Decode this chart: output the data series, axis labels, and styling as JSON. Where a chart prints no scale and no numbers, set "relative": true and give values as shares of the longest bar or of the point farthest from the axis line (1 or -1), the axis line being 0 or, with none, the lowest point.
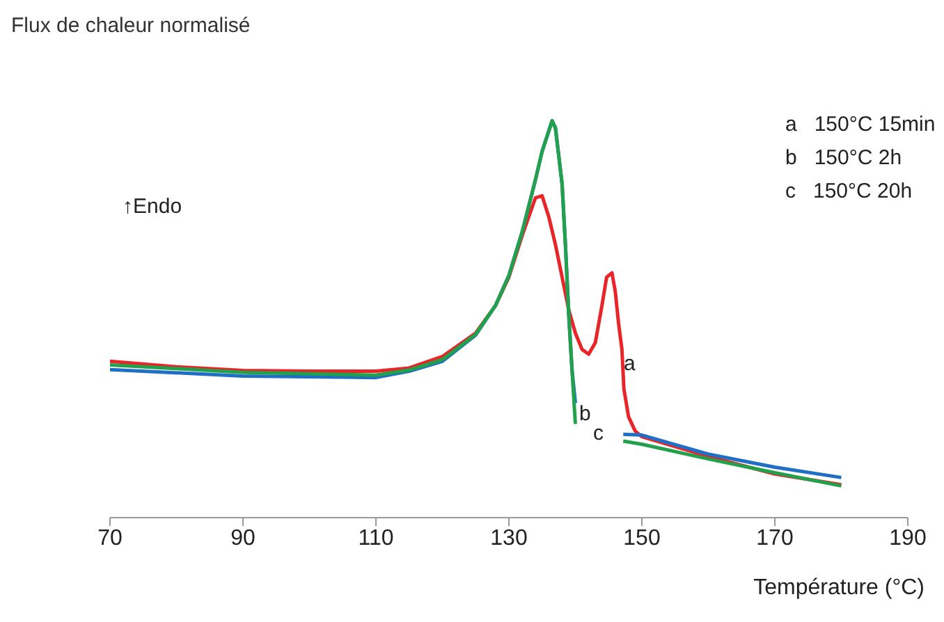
{
  "chart_data": {
    "type": "line",
    "ylabel": "Flux de chaleur normalisé",
    "xlabel": "Température (°C)",
    "relative": true,
    "xlim": [
      70,
      190
    ],
    "xticks": [
      70,
      90,
      110,
      130,
      150,
      170,
      190
    ],
    "grid": false,
    "legend": false,
    "marker": "none",
    "line_style": "solid",
    "annotations": [
      "↑Endo",
      "a   150°C 15min",
      "b   150°C 2h",
      "c   150°C 20h",
      "a",
      "b",
      "c"
    ],
    "series": [
      {
        "color": "#e8262a",
        "x": [
          70,
          80,
          90,
          100,
          110,
          115,
          120,
          125,
          128,
          130,
          132,
          134,
          135,
          136,
          137,
          138,
          139,
          140,
          141,
          142,
          143,
          144,
          144.7,
          145.5,
          146,
          146.5,
          147,
          147.3,
          148,
          149,
          150,
          160,
          170,
          180
        ],
        "values": [
          0.394,
          0.38,
          0.371,
          0.369,
          0.369,
          0.377,
          0.406,
          0.465,
          0.535,
          0.606,
          0.711,
          0.806,
          0.811,
          0.758,
          0.688,
          0.606,
          0.524,
          0.465,
          0.424,
          0.412,
          0.441,
          0.535,
          0.606,
          0.617,
          0.57,
          0.489,
          0.424,
          0.324,
          0.254,
          0.218,
          0.204,
          0.154,
          0.11,
          0.083
        ]
      },
      {
        "color": "#1f6fc4",
        "x": [
          70,
          90,
          110,
          115,
          120,
          125,
          128,
          130,
          132,
          134,
          135,
          136.5,
          137,
          138,
          138.5,
          139,
          139.5,
          140,
          143,
          147.2,
          150,
          160,
          170,
          180
        ],
        "values": [
          0.373,
          0.357,
          0.353,
          0.369,
          0.394,
          0.46,
          0.535,
          0.61,
          0.72,
          0.852,
          0.923,
          1,
          0.982,
          0.841,
          0.688,
          0.512,
          0.371,
          0.289,
          null,
          0.21,
          0.208,
          0.16,
          0.127,
          0.101
        ]
      },
      {
        "color": "#23a04b",
        "x": [
          70,
          90,
          110,
          115,
          120,
          125,
          128,
          130,
          132,
          134,
          135,
          136.5,
          137,
          138,
          138.5,
          139,
          139.5,
          140,
          143,
          147.2,
          150,
          160,
          170,
          180
        ],
        "values": [
          0.385,
          0.366,
          0.359,
          0.372,
          0.398,
          0.462,
          0.535,
          0.61,
          0.72,
          0.852,
          0.923,
          1,
          0.982,
          0.841,
          0.688,
          0.512,
          0.371,
          0.236,
          null,
          0.193,
          0.185,
          0.148,
          0.113,
          0.08
        ]
      }
    ]
  }
}
